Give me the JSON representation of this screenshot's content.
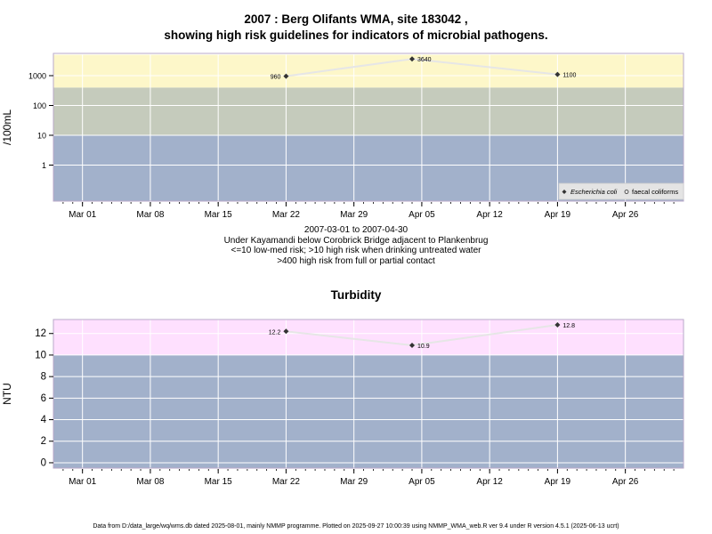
{
  "chart_data": [
    {
      "type": "line",
      "title_line1": "2007 : Berg Olifants WMA, site 183042 ,",
      "title_line2": "showing high risk guidelines for indicators of microbial pathogens.",
      "ylabel": "/100mL",
      "yscale": "log",
      "y_ticks": [
        "1",
        "10",
        "100",
        "1000"
      ],
      "x_ticks": [
        "Mar 01",
        "Mar 08",
        "Mar 15",
        "Mar 22",
        "Mar 29",
        "Apr 05",
        "Apr 12",
        "Apr 19",
        "Apr 26"
      ],
      "series": [
        {
          "name": "Escherichia coli",
          "points": [
            {
              "x": "2007-03-22",
              "y": 960,
              "label": "960"
            },
            {
              "x": "2007-04-04",
              "y": 3640,
              "label": "3640"
            },
            {
              "x": "2007-04-19",
              "y": 1100,
              "label": "1100"
            }
          ]
        }
      ],
      "legend": {
        "placement": "bottom-right",
        "entries": [
          "Escherichia coli",
          "faecal coliforms"
        ]
      },
      "bands": [
        {
          "from": 0,
          "to": 10,
          "color": "#a2b1cb"
        },
        {
          "from": 10,
          "to": 400,
          "color": "#c5cbbc"
        },
        {
          "from": 400,
          "to": 5000,
          "color": "#fdf7c9"
        }
      ],
      "caption": [
        "2007-03-01 to 2007-04-30",
        "Under Kayamandi below Corobrick Bridge adjacent to Plankenbrug",
        "<=10 low-med risk; >10 high risk when drinking untreated water",
        ">400 high risk from full or partial contact"
      ]
    },
    {
      "type": "line",
      "title": "Turbidity",
      "ylabel": "NTU",
      "ylim": [
        -0.5,
        13.3
      ],
      "y_ticks": [
        "0",
        "2",
        "4",
        "6",
        "8",
        "10",
        "12"
      ],
      "x_ticks": [
        "Mar 01",
        "Mar 08",
        "Mar 15",
        "Mar 22",
        "Mar 29",
        "Apr 05",
        "Apr 12",
        "Apr 19",
        "Apr 26"
      ],
      "series": [
        {
          "points": [
            {
              "x": "2007-03-22",
              "y": 12.2,
              "label": "12.2"
            },
            {
              "x": "2007-04-04",
              "y": 10.9,
              "label": "10.9"
            },
            {
              "x": "2007-04-19",
              "y": 12.8,
              "label": "12.8"
            }
          ]
        }
      ],
      "bands": [
        {
          "from": -0.5,
          "to": 10,
          "color": "#a2b1cb"
        },
        {
          "from": 10,
          "to": 13.3,
          "color": "#fee0fe"
        }
      ]
    }
  ],
  "footer": "Data from D:/data_large/wq/wms.db dated 2025-08-01, mainly NMMP programme. Plotted on 2025-09-27 10:00:39 using NMMP_WMA_web.R ver 9.4 under R version 4.5.1 (2025-06-13 ucrt)"
}
